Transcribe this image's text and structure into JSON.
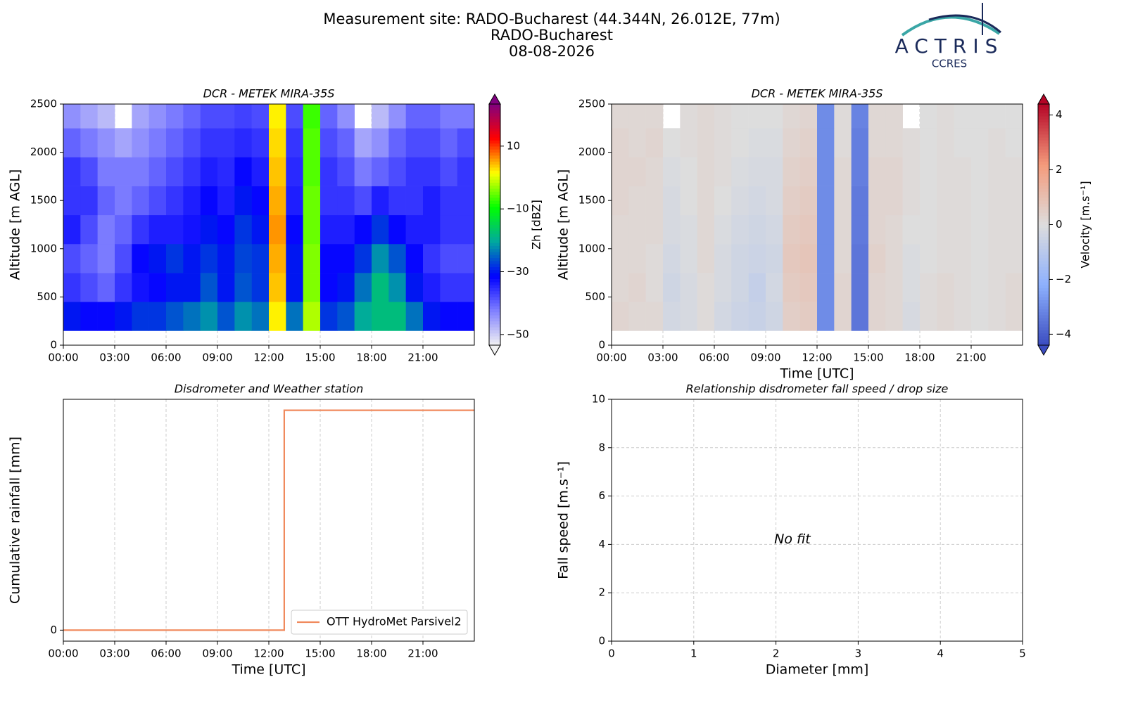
{
  "header": {
    "title_lines": [
      "Measurement site: RADO-Bucharest (44.344N, 26.012E, 77m)",
      "RADO-Bucharest",
      "08-08-2026"
    ],
    "logo": {
      "name": "ACTRIS",
      "subtitle": "CCRES"
    }
  },
  "chart_data": [
    {
      "type": "heatmap",
      "title": "DCR - METEK MIRA-35S",
      "ylabel": "Altitude [m AGL]",
      "xlim": [
        0,
        24
      ],
      "xticks": [
        {
          "value": 0,
          "label": "00:00"
        },
        {
          "value": 3,
          "label": "03:00"
        },
        {
          "value": 6,
          "label": "06:00"
        },
        {
          "value": 9,
          "label": "09:00"
        },
        {
          "value": 12,
          "label": "12:00"
        },
        {
          "value": 15,
          "label": "15:00"
        },
        {
          "value": 18,
          "label": "18:00"
        },
        {
          "value": 21,
          "label": "21:00"
        }
      ],
      "ylim": [
        0,
        2500
      ],
      "yticks": [
        0,
        500,
        1000,
        1500,
        2000,
        2500
      ],
      "grid": "both",
      "x_bins": [
        0,
        1,
        2,
        3,
        4,
        5,
        6,
        7,
        8,
        9,
        10,
        11,
        12,
        13,
        14,
        15,
        16,
        17,
        18,
        19,
        20,
        21,
        22,
        23,
        24
      ],
      "y_bins": [
        150,
        450,
        750,
        1050,
        1350,
        1650,
        1950,
        2250,
        2500
      ],
      "values": [
        [
          -30,
          -32,
          -32,
          -30,
          -28,
          -28,
          -26,
          -24,
          -22,
          -26,
          -22,
          -24,
          2,
          -24,
          -2,
          -28,
          -26,
          -20,
          -18,
          -18,
          -24,
          -30,
          -32,
          -32
        ],
        [
          -36,
          -38,
          -40,
          -36,
          -33,
          -32,
          -30,
          -30,
          -26,
          -30,
          -26,
          -28,
          4,
          -30,
          -4,
          -32,
          -30,
          -24,
          -18,
          -22,
          -30,
          -34,
          -36,
          -36
        ],
        [
          -38,
          -40,
          -42,
          -38,
          -32,
          -30,
          -28,
          -30,
          -28,
          -30,
          -27,
          -28,
          5,
          -30,
          -4,
          -32,
          -32,
          -28,
          -22,
          -26,
          -32,
          -36,
          -38,
          -38
        ],
        [
          -34,
          -38,
          -42,
          -40,
          -36,
          -34,
          -34,
          -33,
          -30,
          -32,
          -28,
          -30,
          6,
          -32,
          -5,
          -34,
          -34,
          -32,
          -28,
          -32,
          -34,
          -34,
          -36,
          -36
        ],
        [
          -36,
          -36,
          -40,
          -42,
          -40,
          -38,
          -36,
          -34,
          -32,
          -34,
          -30,
          -32,
          5,
          -34,
          -5,
          -36,
          -36,
          -38,
          -34,
          -36,
          -36,
          -34,
          -36,
          -36
        ],
        [
          -36,
          -38,
          -42,
          -42,
          -42,
          -40,
          -38,
          -36,
          -34,
          -35,
          -32,
          -34,
          4,
          -35,
          -6,
          -36,
          -38,
          -42,
          -40,
          -38,
          -36,
          -36,
          -38,
          -36
        ],
        [
          -40,
          -42,
          -44,
          -46,
          -44,
          -42,
          -40,
          -38,
          -36,
          -36,
          -35,
          -36,
          3,
          -36,
          -6,
          -38,
          -40,
          -46,
          -44,
          -40,
          -38,
          -38,
          -40,
          -38
        ],
        [
          -44,
          -46,
          -48,
          null,
          -46,
          -44,
          -42,
          -40,
          -38,
          -38,
          -37,
          -38,
          2,
          -38,
          -7,
          -40,
          -44,
          null,
          -48,
          -44,
          -40,
          -40,
          -42,
          -42
        ]
      ],
      "colorbar": {
        "label": "Zh [dBZ]",
        "clim": [
          -53.4,
          23.4
        ],
        "ticks": [
          {
            "value": -50,
            "label": "−50"
          },
          {
            "value": -30,
            "label": "−30"
          },
          {
            "value": -10,
            "label": "−10"
          },
          10
        ],
        "colors": [
          "#f2f2f2",
          "#8080ff",
          "#0000ff",
          "#00a8a0",
          "#00ff00",
          "#ffff00",
          "#ff0000",
          "#800080"
        ]
      }
    },
    {
      "type": "heatmap",
      "title": "DCR - METEK MIRA-35S",
      "ylabel": "Altitude [m AGL]",
      "xlabel": "Time [UTC]",
      "xlim": [
        0,
        24
      ],
      "xticks": [
        {
          "value": 0,
          "label": "00:00"
        },
        {
          "value": 3,
          "label": "03:00"
        },
        {
          "value": 6,
          "label": "06:00"
        },
        {
          "value": 9,
          "label": "09:00"
        },
        {
          "value": 12,
          "label": "12:00"
        },
        {
          "value": 15,
          "label": "15:00"
        },
        {
          "value": 18,
          "label": "18:00"
        },
        {
          "value": 21,
          "label": "21:00"
        }
      ],
      "ylim": [
        0,
        2500
      ],
      "yticks": [
        0,
        500,
        1000,
        1500,
        2000,
        2500
      ],
      "grid": "both",
      "x_bins": [
        0,
        1,
        2,
        3,
        4,
        5,
        6,
        7,
        8,
        9,
        10,
        11,
        12,
        13,
        14,
        15,
        16,
        17,
        18,
        19,
        20,
        21,
        22,
        23,
        24
      ],
      "y_bins": [
        150,
        450,
        750,
        1050,
        1350,
        1650,
        1950,
        2250,
        2500
      ],
      "values": [
        [
          0.3,
          0.2,
          0.2,
          -0.3,
          -0.2,
          0.1,
          -0.3,
          -0.5,
          -0.6,
          -0.4,
          0.5,
          0.6,
          -3,
          0.3,
          -3.5,
          0.3,
          0.2,
          -0.2,
          0.1,
          0.2,
          0.1,
          0,
          0.1,
          0.2
        ],
        [
          0.2,
          0.3,
          0.1,
          -0.4,
          -0.2,
          0.1,
          -0.2,
          -0.4,
          -0.7,
          -0.3,
          0.6,
          0.7,
          -3,
          0.3,
          -3.5,
          0.3,
          0.2,
          -0.1,
          0.1,
          0.2,
          0.1,
          0,
          0.1,
          0.2
        ],
        [
          0.2,
          0.2,
          0.1,
          -0.3,
          -0.1,
          0.2,
          -0.2,
          -0.4,
          -0.5,
          -0.4,
          0.7,
          0.8,
          -3,
          0.2,
          -3.5,
          0.4,
          0.2,
          -0.1,
          0,
          0.1,
          0.1,
          0,
          0.1,
          0.1
        ],
        [
          0.2,
          0.2,
          0.2,
          -0.2,
          -0.1,
          0.2,
          -0.1,
          -0.3,
          -0.4,
          -0.3,
          0.6,
          0.7,
          -3,
          0.2,
          -3.4,
          0.3,
          0.2,
          0,
          0,
          0.1,
          0.1,
          0,
          0.1,
          0.1
        ],
        [
          0.3,
          0.2,
          0.2,
          -0.2,
          0,
          0.2,
          0,
          -0.2,
          -0.3,
          -0.2,
          0.5,
          0.6,
          -3,
          0.2,
          -3.4,
          0.3,
          0.3,
          0.1,
          0,
          0.1,
          0.1,
          0,
          0.1,
          0.1
        ],
        [
          0.3,
          0.3,
          0.2,
          -0.1,
          0,
          0.2,
          0.1,
          -0.1,
          -0.2,
          -0.2,
          0.4,
          0.5,
          -3,
          0.2,
          -3.3,
          0.3,
          0.3,
          0.1,
          0,
          0.1,
          0.1,
          0,
          0.1,
          0.1
        ],
        [
          0.3,
          0.2,
          0.3,
          0,
          0.1,
          0.2,
          0.1,
          0,
          -0.1,
          -0.1,
          0.3,
          0.4,
          -3,
          0.1,
          -3.3,
          0.2,
          0.2,
          0.1,
          0,
          0.1,
          0,
          0,
          0.1,
          0
        ],
        [
          0.2,
          0.2,
          0.2,
          null,
          0.1,
          0.2,
          0.1,
          0,
          0,
          0,
          0.2,
          0.3,
          -3,
          0.1,
          -3.2,
          0.2,
          0.2,
          null,
          0,
          0.1,
          0,
          0,
          0,
          0
        ]
      ],
      "colorbar": {
        "label": "Velocity [m.s⁻¹]",
        "clim": [
          -4.4,
          4.4
        ],
        "ticks": [
          {
            "value": -4,
            "label": "−4"
          },
          {
            "value": -2,
            "label": "−2"
          },
          0,
          2,
          4
        ],
        "colors": [
          "#3b4cc0",
          "#8db0fe",
          "#dddddd",
          "#f49a7b",
          "#b40426"
        ]
      }
    },
    {
      "type": "line",
      "title": "Disdrometer and Weather station",
      "xlabel": "Time [UTC]",
      "ylabel": "Cumulative rainfall [mm]",
      "x": [
        0,
        12.9,
        12.9,
        24
      ],
      "series": [
        {
          "name": "OTT HydroMet Parsivel2",
          "color": "#f08a5d",
          "values": [
            0,
            0,
            1,
            1
          ]
        }
      ],
      "xlim": [
        0,
        24
      ],
      "xticks": [
        {
          "value": 0,
          "label": "00:00"
        },
        {
          "value": 3,
          "label": "03:00"
        },
        {
          "value": 6,
          "label": "06:00"
        },
        {
          "value": 9,
          "label": "09:00"
        },
        {
          "value": 12,
          "label": "12:00"
        },
        {
          "value": 15,
          "label": "15:00"
        },
        {
          "value": 18,
          "label": "18:00"
        },
        {
          "value": 21,
          "label": "21:00"
        }
      ],
      "ylim": [
        -0.05,
        1.05
      ],
      "yticks": [
        0
      ],
      "grid": "x",
      "legend": "lower right"
    },
    {
      "type": "scatter",
      "title": "Relationship disdrometer fall speed / drop size",
      "xlabel": "Diameter [mm]",
      "ylabel": "Fall speed [m.s⁻¹]",
      "annotation": "No fit",
      "xlim": [
        0,
        5
      ],
      "xticks": [
        0,
        1,
        2,
        3,
        4,
        5
      ],
      "ylim": [
        0,
        10
      ],
      "yticks": [
        0,
        2,
        4,
        6,
        8,
        10
      ],
      "grid": "both"
    }
  ]
}
